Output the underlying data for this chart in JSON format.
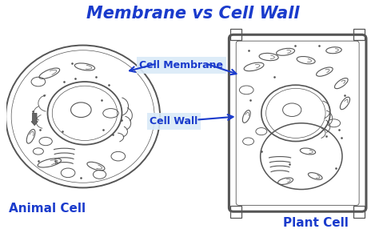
{
  "title": "Membrane vs Cell Wall",
  "title_color": "#1a3bcc",
  "title_fontsize": 15,
  "title_weight": "bold",
  "bg_color": "#ffffff",
  "label_cell_membrane": "Cell Membrane",
  "label_cell_wall": "Cell Wall",
  "label_animal": "Animal Cell",
  "label_plant": "Plant Cell",
  "label_color": "#1a3bcc",
  "label_fontsize": 9,
  "label_bg": "#daeaf8",
  "animal_label_fontsize": 11,
  "plant_label_fontsize": 11,
  "draw_color": "#555555",
  "line_width": 1.0,
  "arrow_color": "#1a3bcc"
}
